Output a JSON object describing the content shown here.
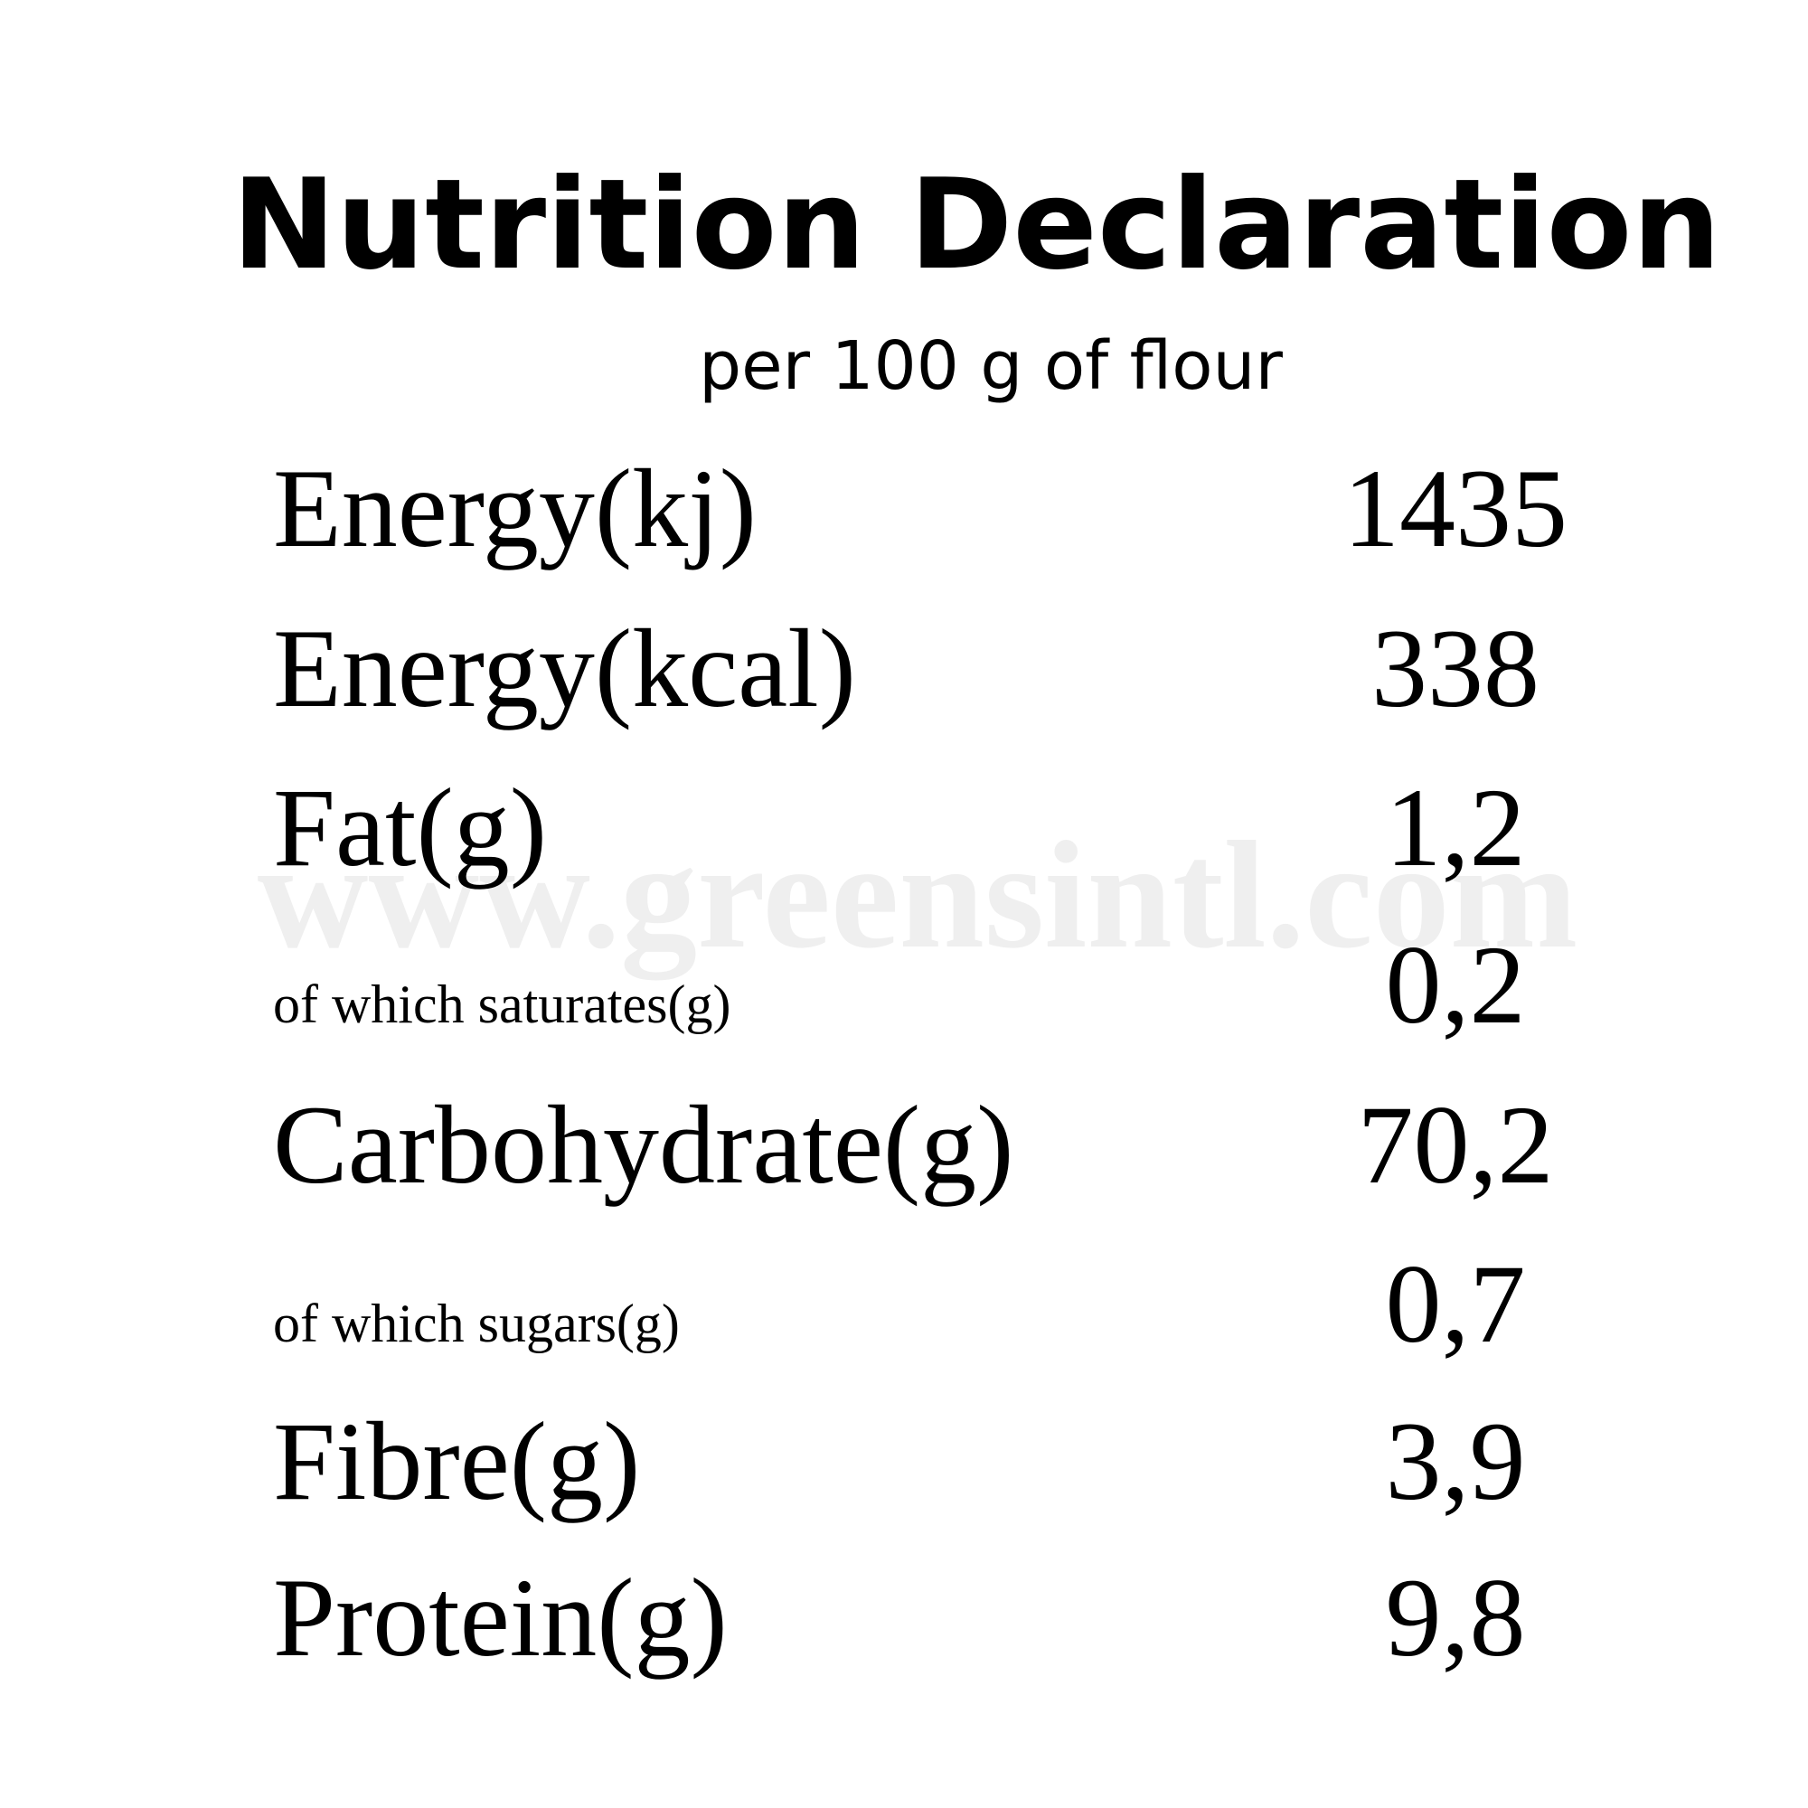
{
  "header": {
    "title": "Nutrition Declaration",
    "subtitle": "per 100 g of flour"
  },
  "watermark": "www.greensintl.com",
  "table": {
    "rows": [
      {
        "label": "Energy(kj)",
        "value": "1435",
        "size": "large"
      },
      {
        "label": "Energy(kcal)",
        "value": "338",
        "size": "large"
      },
      {
        "label": "Fat(g)",
        "value": "1,2",
        "size": "large"
      },
      {
        "label": "of which saturates(g)",
        "value": "0,2",
        "size": "small"
      },
      {
        "label": "Carbohydrate(g)",
        "value": "70,2",
        "size": "large"
      },
      {
        "label": "of which sugars(g)",
        "value": "0,7",
        "size": "small"
      },
      {
        "label": "Fibre(g)",
        "value": "3,9",
        "size": "large"
      },
      {
        "label": "Protein(g)",
        "value": "9,8",
        "size": "large"
      }
    ]
  }
}
